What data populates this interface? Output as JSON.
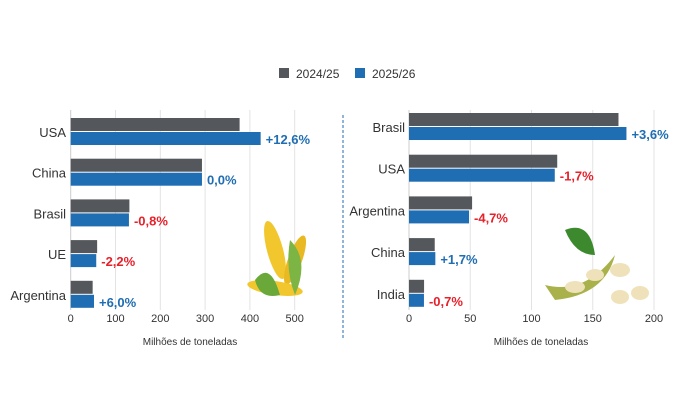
{
  "legend": [
    {
      "name": "2024/25",
      "color": "#54575b"
    },
    {
      "name": "2025/26",
      "color": "#1f6db2"
    }
  ],
  "colors": {
    "positive": "#1f6db2",
    "negative": "#e8202a",
    "grid": "#e3e3e3",
    "divider": "#1f6db2"
  },
  "chart_data": [
    {
      "type": "bar",
      "orientation": "horizontal",
      "illustration": "corn-icon",
      "categories": [
        "USA",
        "China",
        "Brasil",
        "UE",
        "Argentina"
      ],
      "series": [
        {
          "name": "2024/25",
          "values": [
            377,
            293,
            131,
            59,
            49
          ]
        },
        {
          "name": "2025/26",
          "values": [
            424,
            293,
            130,
            57,
            52
          ]
        }
      ],
      "data_labels": [
        "+12,6%",
        "0,0%",
        "-0,8%",
        "-2,2%",
        "+6,0%"
      ],
      "xlabel": "Milhões de toneladas",
      "xticks": [
        "0",
        "100",
        "200",
        "300",
        "400",
        "500"
      ],
      "xlim": [
        0,
        550
      ],
      "grid": true
    },
    {
      "type": "bar",
      "orientation": "horizontal",
      "illustration": "soybean-icon",
      "categories": [
        "Brasil",
        "USA",
        "Argentina",
        "China",
        "India"
      ],
      "series": [
        {
          "name": "2024/25",
          "values": [
            171,
            121,
            51.5,
            21,
            12.3
          ]
        },
        {
          "name": "2025/26",
          "values": [
            177.5,
            119,
            49,
            21.5,
            12.2
          ]
        }
      ],
      "data_labels": [
        "+3,6%",
        "-1,7%",
        "-4,7%",
        "+1,7%",
        "-0,7%"
      ],
      "xlabel": "Milhões de toneladas",
      "xticks": [
        "0",
        "50",
        "100",
        "150",
        "200"
      ],
      "xlim": [
        0,
        210
      ],
      "grid": true
    }
  ]
}
